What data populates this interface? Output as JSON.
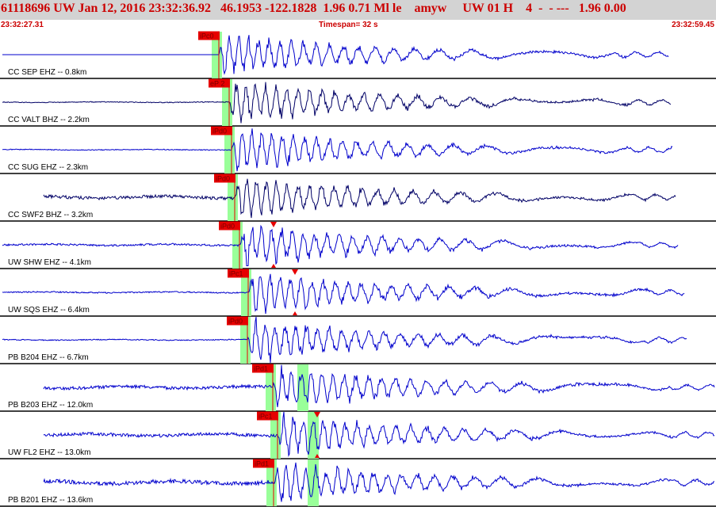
{
  "header": {
    "title": "61118696 UW Jan 12, 2016 23:32:36.92   46.1953 -122.1828  1.96 0.71 Ml le    amyw     UW 01 H    4  -  - ---   1.96 0.00",
    "start_time": "23:32:27.31",
    "timespan": "Timespan=  32 s",
    "end_time": "23:32:59.45"
  },
  "colors": {
    "header_bg": "#d3d3d3",
    "header_text": "#cc0000",
    "waveform_blue": "#0000cc",
    "waveform_dark": "#000066",
    "pick_box": "#e60000",
    "pick_window": "#99ff99"
  },
  "channels": [
    {
      "label": "CC SEP EHZ -- 0.8km",
      "pick": "iPc0",
      "color": "blue",
      "noise": 0.0,
      "onset": 276,
      "end": 843,
      "sWin": null,
      "marker": null
    },
    {
      "label": "CC VALT BHZ -- 2.2km",
      "pick": "eP 2",
      "color": "dark",
      "noise": 0.5,
      "onset": 289,
      "end": 846,
      "sWin": null,
      "marker": null
    },
    {
      "label": "CC SUG EHZ -- 2.3km",
      "pick": "iPd0",
      "color": "blue",
      "noise": 0.5,
      "onset": 292,
      "end": 848,
      "sWin": null,
      "marker": null
    },
    {
      "label": "CC SWF2 BHZ -- 3.2km",
      "pick": "iPd0",
      "color": "dark",
      "noise": 2.0,
      "onset": 296,
      "end": 852,
      "sWin": null,
      "marker": null
    },
    {
      "label": "UW SHW EHZ -- 4.1km",
      "pick": "iPd0",
      "color": "blue",
      "noise": 1.2,
      "onset": 302,
      "end": 855,
      "sWin": null,
      "marker": 345
    },
    {
      "label": "UW SQS EHZ -- 6.4km",
      "pick": "iPc1",
      "color": "blue",
      "noise": 0.8,
      "onset": 313,
      "end": 863,
      "sWin": null,
      "marker": 372
    },
    {
      "label": "PB B204 EHZ -- 6.7km",
      "pick": "iPd0",
      "color": "blue",
      "noise": 0.6,
      "onset": 312,
      "end": 866,
      "sWin": null,
      "marker": null
    },
    {
      "label": "PB B203 EHZ -- 12.0km",
      "pick": "iPd1",
      "color": "blue",
      "noise": 2.0,
      "onset": 344,
      "end": 903,
      "sWin": 382,
      "marker": null
    },
    {
      "label": "UW FL2 EHZ -- 13.0km",
      "pick": "iPc1",
      "color": "blue",
      "noise": 2.0,
      "onset": 350,
      "end": 903,
      "sWin": 395,
      "marker": 400
    },
    {
      "label": "PB B201 EHZ -- 13.6km",
      "pick": "iPd1",
      "color": "blue",
      "noise": 2.5,
      "onset": 345,
      "end": 903,
      "sWin": 395,
      "marker": null
    }
  ]
}
